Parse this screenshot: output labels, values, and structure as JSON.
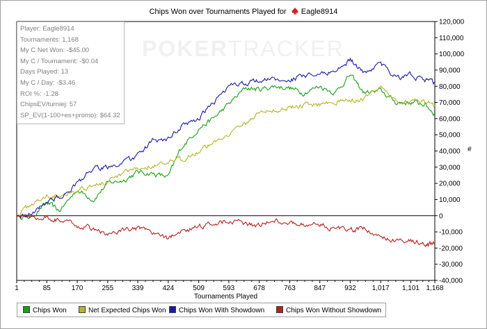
{
  "chart_data": {
    "type": "line",
    "title": "Chips Won over Tournaments Played for",
    "player": "Eagle8914",
    "watermark": {
      "part1": "POKER",
      "part2": "TRACKER"
    },
    "xlabel": "Tournaments Played",
    "ylabel": "#",
    "xlim": [
      1,
      1168
    ],
    "ylim": [
      -40000,
      120000
    ],
    "x_ticks": [
      "1",
      "85",
      "170",
      "255",
      "339",
      "424",
      "509",
      "593",
      "678",
      "763",
      "847",
      "932",
      "1,017",
      "1,101",
      "1,168"
    ],
    "x_tick_values": [
      1,
      85,
      170,
      255,
      339,
      424,
      509,
      593,
      678,
      763,
      847,
      932,
      1017,
      1101,
      1168
    ],
    "y_ticks": [
      "120,000",
      "110,000",
      "100,000",
      "90,000",
      "80,000",
      "70,000",
      "60,000",
      "50,000",
      "40,000",
      "30,000",
      "20,000",
      "10,000",
      "0",
      "-10,000",
      "-20,000",
      "-30,000",
      "-40,000"
    ],
    "y_tick_values": [
      120000,
      110000,
      100000,
      90000,
      80000,
      70000,
      60000,
      50000,
      40000,
      30000,
      20000,
      10000,
      0,
      -10000,
      -20000,
      -30000,
      -40000
    ],
    "grid": false,
    "legend_position": "bottom",
    "series": [
      {
        "name": "Chips Won",
        "color": "#1a9e1a",
        "x": [
          1,
          40,
          85,
          120,
          170,
          215,
          255,
          300,
          339,
          380,
          424,
          460,
          509,
          550,
          593,
          640,
          678,
          720,
          763,
          800,
          847,
          890,
          932,
          970,
          1017,
          1060,
          1101,
          1140,
          1168
        ],
        "y": [
          0,
          -1000,
          8000,
          3000,
          16000,
          10000,
          20000,
          22000,
          27000,
          26000,
          24000,
          42000,
          54000,
          60000,
          69000,
          79000,
          78000,
          80000,
          79000,
          76000,
          80000,
          76000,
          87000,
          76000,
          77000,
          70000,
          70000,
          69000,
          63000
        ]
      },
      {
        "name": "Net Expected Chips Won",
        "color": "#b5b52a",
        "x": [
          1,
          40,
          85,
          120,
          170,
          215,
          255,
          300,
          339,
          380,
          424,
          460,
          509,
          550,
          593,
          640,
          678,
          720,
          763,
          800,
          847,
          890,
          932,
          970,
          1017,
          1060,
          1101,
          1140,
          1168
        ],
        "y": [
          0,
          7000,
          12000,
          13000,
          16000,
          19000,
          20000,
          26000,
          29000,
          31000,
          32000,
          35000,
          40000,
          45000,
          51000,
          57000,
          64000,
          65000,
          67000,
          68000,
          69000,
          71000,
          71000,
          72000,
          79000,
          70000,
          71000,
          70000,
          68000
        ]
      },
      {
        "name": "Chips Won With Showdown",
        "color": "#1a1aa8",
        "x": [
          1,
          40,
          85,
          120,
          170,
          215,
          255,
          300,
          339,
          380,
          424,
          460,
          509,
          550,
          593,
          640,
          678,
          720,
          763,
          800,
          847,
          890,
          932,
          970,
          1017,
          1060,
          1101,
          1140,
          1168
        ],
        "y": [
          0,
          1000,
          9000,
          11000,
          20000,
          29000,
          30000,
          33000,
          37000,
          46000,
          47000,
          55000,
          60000,
          70000,
          80000,
          82000,
          84000,
          84000,
          84000,
          86000,
          87000,
          90000,
          96000,
          88000,
          94000,
          85000,
          87000,
          84000,
          82000
        ]
      },
      {
        "name": "Chips Won Without Showdown",
        "color": "#b22222",
        "x": [
          1,
          40,
          85,
          120,
          170,
          215,
          255,
          300,
          339,
          380,
          424,
          460,
          509,
          550,
          593,
          640,
          678,
          720,
          763,
          800,
          847,
          890,
          932,
          970,
          1017,
          1060,
          1101,
          1140,
          1168
        ],
        "y": [
          0,
          -1000,
          -500,
          -3000,
          -6000,
          -8000,
          -12000,
          -9000,
          -8000,
          -11000,
          -14000,
          -10000,
          -7000,
          -5000,
          -3000,
          -5000,
          -6000,
          -3000,
          -4000,
          -6000,
          -5000,
          -8000,
          -9000,
          -8000,
          -13000,
          -16000,
          -15000,
          -17000,
          -18000
        ]
      }
    ]
  },
  "stats": [
    "Player: Eagle8914",
    "Tournaments: 1,168",
    "My C Net Won: -$45.00",
    "My C / Tournament: -$0.04",
    "Days Played: 13",
    "My C / Day: -$3.46",
    "ROI %: -1.28",
    "ChipsEV/turniej: 57",
    "SP_EV(1-100+es+promo): $64.32"
  ],
  "legend": [
    {
      "label": "Chips Won",
      "color": "#1a9e1a"
    },
    {
      "label": "Net Expected Chips Won",
      "color": "#b5b52a"
    },
    {
      "label": "Chips Won With Showdown",
      "color": "#1a1aa8"
    },
    {
      "label": "Chips Won Without Showdown",
      "color": "#b22222"
    }
  ],
  "icons": {
    "suit": "spade-suit-icon"
  }
}
